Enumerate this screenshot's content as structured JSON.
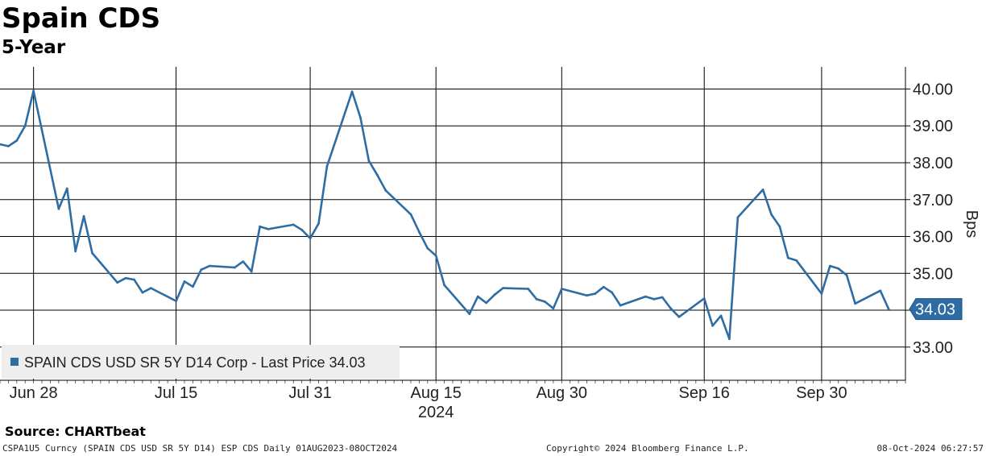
{
  "header": {
    "title": "Spain CDS",
    "subtitle": "5-Year"
  },
  "footer": {
    "source": "Source:  CHARTbeat",
    "left": "CSPA1U5 Curncy (SPAIN CDS USD SR 5Y D14) ESP CDS  Daily 01AUG2023-08OCT2024",
    "middle": "Copyright© 2024 Bloomberg Finance L.P.",
    "right": "08-Oct-2024 06:27:57"
  },
  "colors": {
    "series": "#2e6da4",
    "grid": "#000000",
    "legend_bg": "#eeeeee"
  },
  "chart_data": {
    "type": "line",
    "title": "Spain CDS",
    "subtitle": "5-Year",
    "xlabel": "2024",
    "ylabel": "Bps",
    "ylim": [
      32.1,
      40.6
    ],
    "yticks": [
      33.0,
      34.0,
      35.0,
      36.0,
      37.0,
      38.0,
      39.0,
      40.0
    ],
    "ytick_labels": [
      "33.00",
      "34.00",
      "35.00",
      "36.00",
      "37.00",
      "38.00",
      "39.00",
      "40.00"
    ],
    "xlim": [
      "2024-06-24",
      "2024-10-10"
    ],
    "xticks": [
      "2024-06-28",
      "2024-07-15",
      "2024-07-31",
      "2024-08-15",
      "2024-08-30",
      "2024-09-16",
      "2024-09-30"
    ],
    "xtick_labels": [
      "Jun 28",
      "Jul 15",
      "Jul 31",
      "Aug 15",
      "Aug 30",
      "Sep 16",
      "Sep 30"
    ],
    "xtick_sublabel": "2024",
    "grid": true,
    "legend": "bottom-left",
    "last_value_label": "34.03",
    "series": [
      {
        "name": "SPAIN CDS USD SR 5Y D14 Corp - Last Price 34.03",
        "points": [
          [
            "2024-06-24",
            38.5
          ],
          [
            "2024-06-25",
            38.45
          ],
          [
            "2024-06-26",
            38.6
          ],
          [
            "2024-06-27",
            39.0
          ],
          [
            "2024-06-28",
            39.95
          ],
          [
            "2024-07-01",
            36.75
          ],
          [
            "2024-07-02",
            37.3
          ],
          [
            "2024-07-03",
            35.6
          ],
          [
            "2024-07-04",
            36.55
          ],
          [
            "2024-07-05",
            35.55
          ],
          [
            "2024-07-08",
            34.75
          ],
          [
            "2024-07-09",
            34.87
          ],
          [
            "2024-07-10",
            34.83
          ],
          [
            "2024-07-11",
            34.48
          ],
          [
            "2024-07-12",
            34.6
          ],
          [
            "2024-07-15",
            34.25
          ],
          [
            "2024-07-16",
            34.78
          ],
          [
            "2024-07-17",
            34.64
          ],
          [
            "2024-07-18",
            35.1
          ],
          [
            "2024-07-19",
            35.2
          ],
          [
            "2024-07-22",
            35.16
          ],
          [
            "2024-07-23",
            35.32
          ],
          [
            "2024-07-24",
            35.05
          ],
          [
            "2024-07-25",
            36.27
          ],
          [
            "2024-07-26",
            36.2
          ],
          [
            "2024-07-29",
            36.32
          ],
          [
            "2024-07-30",
            36.18
          ],
          [
            "2024-07-31",
            35.95
          ],
          [
            "2024-08-01",
            36.35
          ],
          [
            "2024-08-02",
            37.9
          ],
          [
            "2024-08-05",
            39.93
          ],
          [
            "2024-08-06",
            39.22
          ],
          [
            "2024-08-07",
            38.05
          ],
          [
            "2024-08-08",
            37.67
          ],
          [
            "2024-08-09",
            37.25
          ],
          [
            "2024-08-12",
            36.6
          ],
          [
            "2024-08-13",
            36.12
          ],
          [
            "2024-08-14",
            35.68
          ],
          [
            "2024-08-15",
            35.48
          ],
          [
            "2024-08-16",
            34.68
          ],
          [
            "2024-08-19",
            33.9
          ],
          [
            "2024-08-20",
            34.37
          ],
          [
            "2024-08-21",
            34.2
          ],
          [
            "2024-08-22",
            34.42
          ],
          [
            "2024-08-23",
            34.6
          ],
          [
            "2024-08-26",
            34.58
          ],
          [
            "2024-08-27",
            34.3
          ],
          [
            "2024-08-28",
            34.23
          ],
          [
            "2024-08-29",
            34.05
          ],
          [
            "2024-08-30",
            34.58
          ],
          [
            "2024-09-02",
            34.4
          ],
          [
            "2024-09-03",
            34.45
          ],
          [
            "2024-09-04",
            34.63
          ],
          [
            "2024-09-05",
            34.48
          ],
          [
            "2024-09-06",
            34.13
          ],
          [
            "2024-09-09",
            34.37
          ],
          [
            "2024-09-10",
            34.3
          ],
          [
            "2024-09-11",
            34.35
          ],
          [
            "2024-09-12",
            34.05
          ],
          [
            "2024-09-13",
            33.82
          ],
          [
            "2024-09-16",
            34.32
          ],
          [
            "2024-09-17",
            33.58
          ],
          [
            "2024-09-18",
            33.85
          ],
          [
            "2024-09-19",
            33.22
          ],
          [
            "2024-09-20",
            36.52
          ],
          [
            "2024-09-23",
            37.27
          ],
          [
            "2024-09-24",
            36.6
          ],
          [
            "2024-09-25",
            36.27
          ],
          [
            "2024-09-26",
            35.42
          ],
          [
            "2024-09-27",
            35.35
          ],
          [
            "2024-09-30",
            34.45
          ],
          [
            "2024-10-01",
            35.2
          ],
          [
            "2024-10-02",
            35.13
          ],
          [
            "2024-10-03",
            34.95
          ],
          [
            "2024-10-04",
            34.18
          ],
          [
            "2024-10-07",
            34.53
          ],
          [
            "2024-10-08",
            34.03
          ]
        ]
      }
    ]
  }
}
